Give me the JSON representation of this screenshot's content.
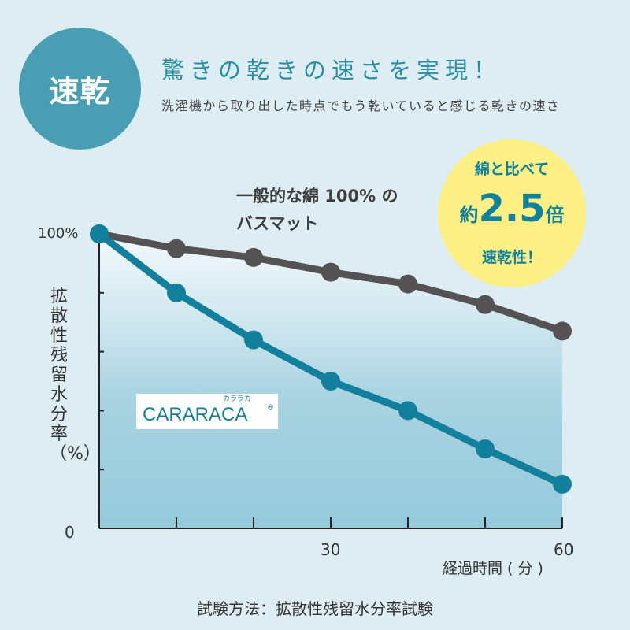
{
  "badge": "速乾",
  "headline": "驚きの乾きの速さを実現！",
  "subheadline": "洗濯機から取り出した時点でもう乾いていると感じる乾きの速さ",
  "callout": {
    "line1": "綿と比べて",
    "prefix": "約",
    "number": "2.5",
    "suffix": "倍",
    "line3": "速乾性！"
  },
  "cotton_label": {
    "line1": "一般的な綿 100% の",
    "line2": "バスマット"
  },
  "brand": {
    "kana": "カララカ",
    "name": "CARARACA",
    "reg": "®"
  },
  "footer": "試験方法：拡散性残留水分率試験",
  "colors": {
    "cotton": "#555254",
    "cararaca": "#127f9c",
    "background": "#ddedf3",
    "callout": "#fbef86"
  },
  "chart_data": {
    "type": "line",
    "title": "",
    "xlabel": "経過時間 ( 分 )",
    "ylabel": "拡散性残留水分率（%）",
    "xlim": [
      0,
      60
    ],
    "ylim": [
      0,
      100
    ],
    "x": [
      0,
      10,
      20,
      30,
      40,
      50,
      60
    ],
    "x_tick_labels": [
      {
        "value": 30,
        "label": "30"
      },
      {
        "value": 60,
        "label": "60"
      }
    ],
    "y_tick_labels": [
      {
        "value": 100,
        "label": "100%"
      },
      {
        "value": 0,
        "label": "0"
      }
    ],
    "series": [
      {
        "name": "一般的な綿 100% のバスマット",
        "values": [
          100,
          95,
          92,
          87,
          83,
          76,
          67
        ]
      },
      {
        "name": "CARARACA",
        "values": [
          100,
          80,
          64,
          50,
          40,
          27,
          15
        ]
      }
    ]
  }
}
